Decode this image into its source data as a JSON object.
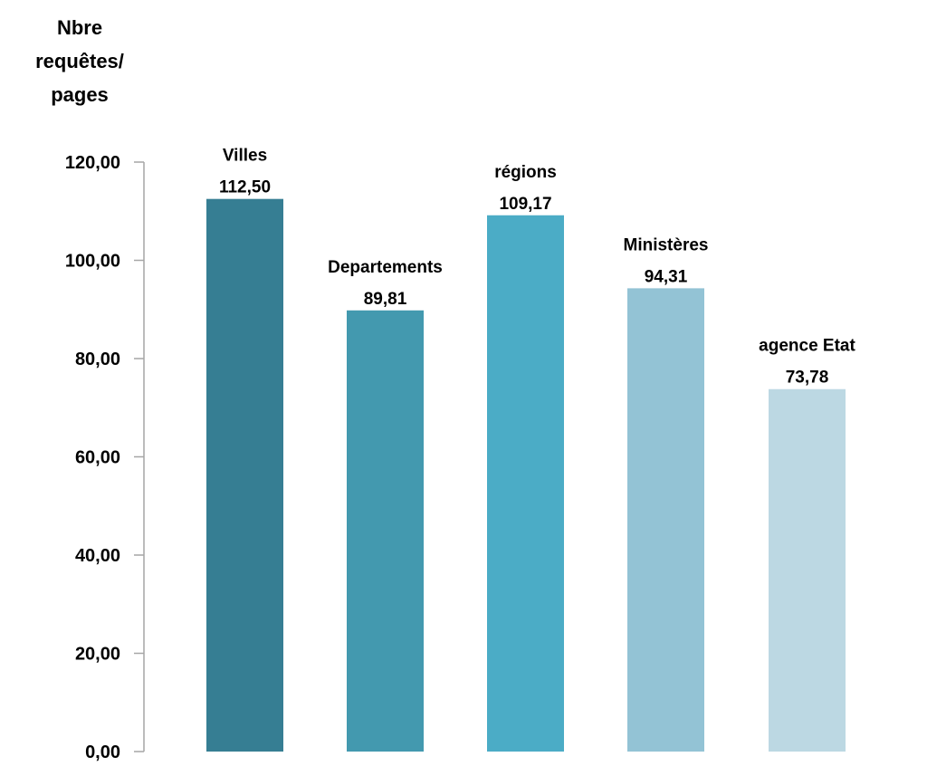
{
  "chart_data": {
    "type": "bar",
    "ylabel": "Nbre requêtes/ pages",
    "ylabel_lines": [
      "Nbre",
      "requêtes/",
      "pages"
    ],
    "categories": [
      "Villes",
      "Departements",
      "régions",
      "Ministères",
      "agence Etat"
    ],
    "values": [
      112.5,
      89.81,
      109.17,
      94.31,
      73.78
    ],
    "value_labels": [
      "112,50",
      "89,81",
      "109,17",
      "94,31",
      "73,78"
    ],
    "colors": [
      "#367E93",
      "#4399AF",
      "#4BACC6",
      "#93C3D5",
      "#BCD8E3"
    ],
    "ylim": [
      0,
      120
    ],
    "yticks": [
      0,
      20,
      40,
      60,
      80,
      100,
      120
    ],
    "ytick_labels": [
      "0,00",
      "20,00",
      "40,00",
      "60,00",
      "80,00",
      "100,00",
      "120,00"
    ],
    "grid": false,
    "legend": "none",
    "data_labels": "category name and value above each bar"
  }
}
